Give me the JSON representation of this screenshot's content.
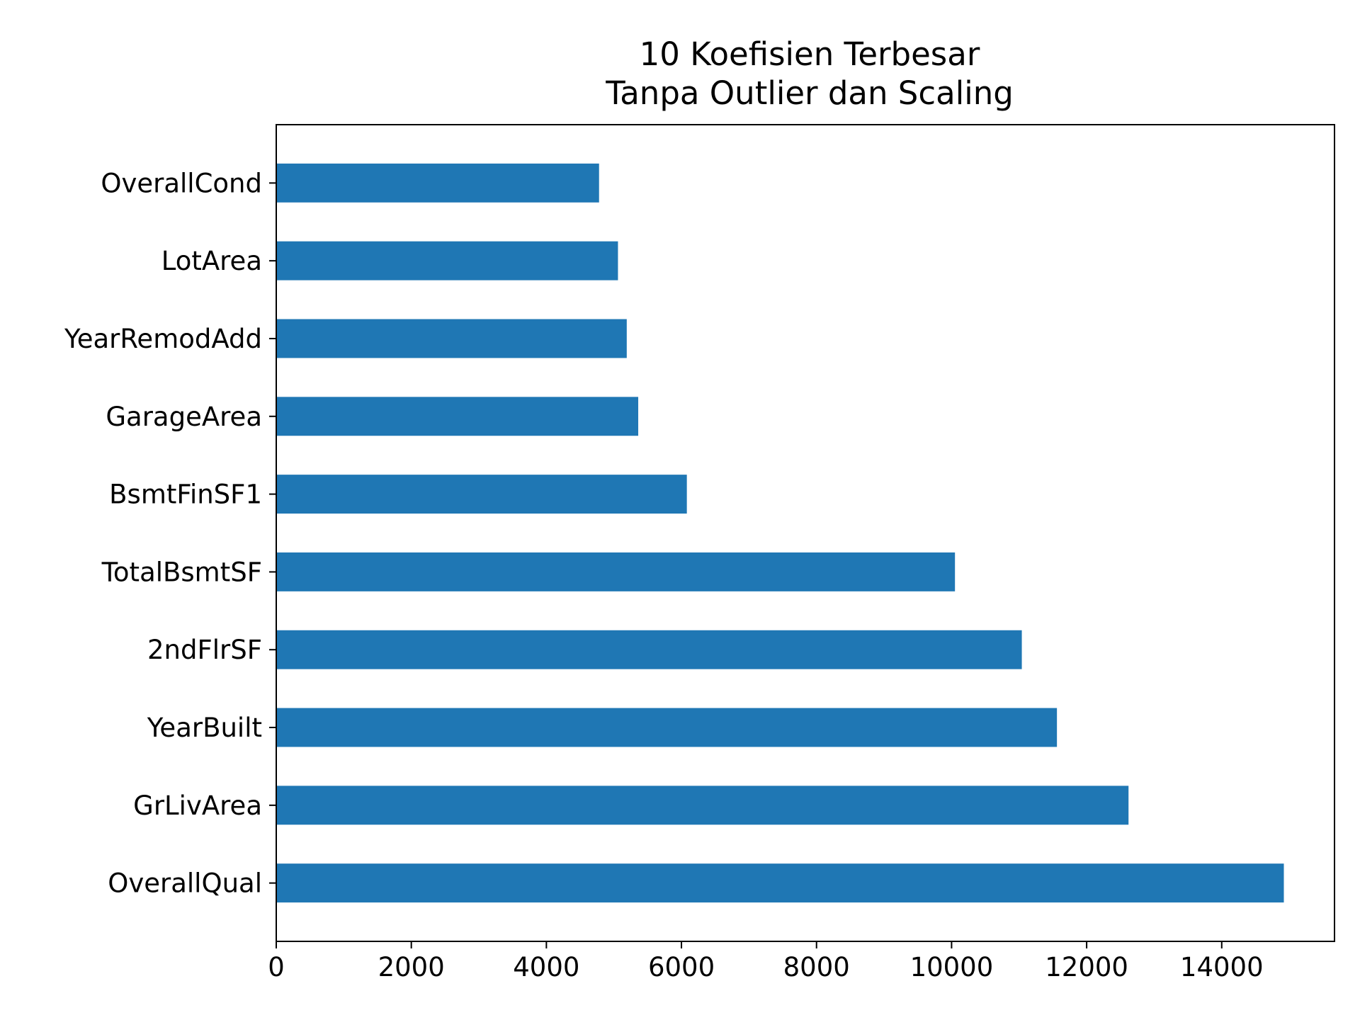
{
  "chart_data": {
    "type": "bar",
    "orientation": "horizontal",
    "title_lines": [
      "10 Koefisien Terbesar",
      "Tanpa Outlier dan Scaling"
    ],
    "xlabel": "",
    "ylabel": "",
    "categories": [
      "OverallCond",
      "LotArea",
      "YearRemodAdd",
      "GarageArea",
      "BsmtFinSF1",
      "TotalBsmtSF",
      "2ndFlrSF",
      "YearBuilt",
      "GrLivArea",
      "OverallQual"
    ],
    "values": [
      4780,
      5060,
      5190,
      5360,
      6080,
      10050,
      11040,
      11560,
      12620,
      14920
    ],
    "xlim": [
      0,
      15670
    ],
    "xticks": [
      0,
      2000,
      4000,
      6000,
      8000,
      10000,
      12000,
      14000
    ],
    "grid": false,
    "legend": "none",
    "bar_color": "#1f77b4"
  }
}
